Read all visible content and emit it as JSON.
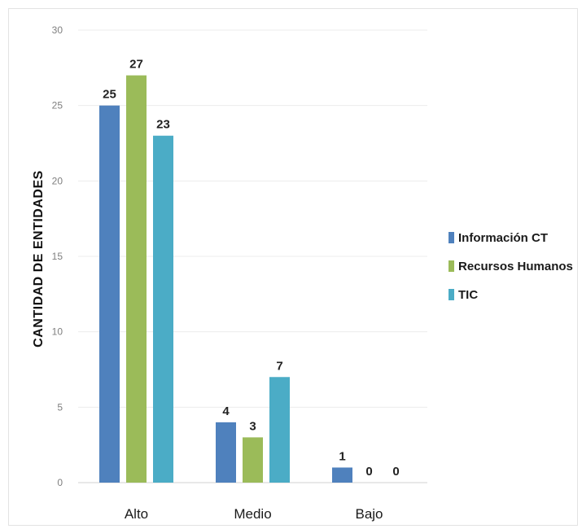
{
  "chart_data": {
    "type": "bar",
    "title": "",
    "xlabel": "",
    "ylabel": "CANTIDAD DE ENTIDADES",
    "categories": [
      "Alto",
      "Medio",
      "Bajo"
    ],
    "series": [
      {
        "name": "Información CT",
        "values": [
          25,
          4,
          1
        ],
        "color": "#4f81bd"
      },
      {
        "name": "Recursos Humanos",
        "values": [
          27,
          3,
          0
        ],
        "color": "#9bbb59"
      },
      {
        "name": "TIC",
        "values": [
          23,
          7,
          0
        ],
        "color": "#4bacc6"
      }
    ],
    "ylim": [
      0,
      30
    ],
    "yticks": [
      "0",
      "5",
      "10",
      "15",
      "20",
      "25",
      "30"
    ],
    "grid": true,
    "legend_position": "right",
    "data_labels": true
  }
}
